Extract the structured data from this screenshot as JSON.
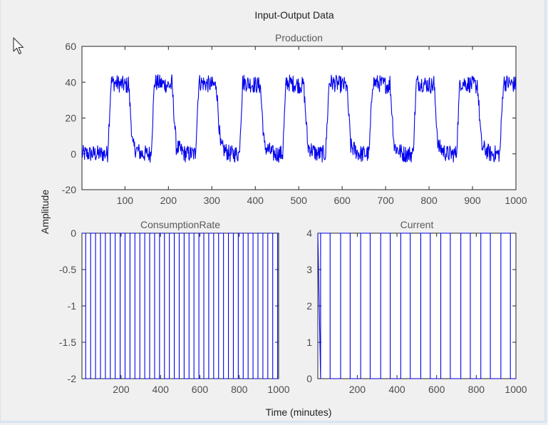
{
  "figure": {
    "title": "Input-Output Data",
    "ylabel": "Amplitude",
    "xlabel": "Time (minutes)",
    "line_color": "#0000ee",
    "axes_color": "#262626"
  },
  "chart_data": [
    {
      "type": "line",
      "title": "Production",
      "xlim": [
        1,
        1000
      ],
      "ylim": [
        -20,
        60
      ],
      "x_ticks": [
        100,
        200,
        300,
        400,
        500,
        600,
        700,
        800,
        900,
        1000
      ],
      "y_ticks": [
        -20,
        0,
        20,
        40,
        60
      ],
      "x_tick_labels": [
        "100",
        "200",
        "300",
        "400",
        "500",
        "600",
        "700",
        "800",
        "900",
        "1000"
      ],
      "y_tick_labels": [
        "-20",
        "0",
        "20",
        "40",
        "60"
      ],
      "pulse_period": 101,
      "pulse_rises": [
        60,
        160,
        262,
        363,
        463,
        562,
        662,
        763,
        863,
        963
      ],
      "pulse_width": 48,
      "high_level": 40,
      "low_level": 0,
      "noise_amplitude": 3
    },
    {
      "type": "line",
      "title": "ConsumptionRate",
      "xlim": [
        1,
        1000
      ],
      "ylim": [
        -2,
        0
      ],
      "x_ticks": [
        200,
        400,
        600,
        800,
        1000
      ],
      "y_ticks": [
        -2,
        -1.5,
        -1,
        -0.5,
        0
      ],
      "x_tick_labels": [
        "200",
        "400",
        "600",
        "800",
        "1000"
      ],
      "y_tick_labels": [
        "-2",
        "-1.5",
        "-1",
        "-0.5",
        "0"
      ],
      "pulse_period": 50,
      "pulse_start": 20,
      "pulse_width": 25,
      "high_level": 0,
      "low_level": -2
    },
    {
      "type": "line",
      "title": "Current",
      "xlim": [
        1,
        1000
      ],
      "ylim": [
        0,
        4
      ],
      "x_ticks": [
        200,
        400,
        600,
        800,
        1000
      ],
      "y_ticks": [
        0,
        1,
        2,
        3,
        4
      ],
      "x_tick_labels": [
        "200",
        "400",
        "600",
        "800",
        "1000"
      ],
      "y_tick_labels": [
        "0",
        "1",
        "2",
        "3",
        "4"
      ],
      "pulse_period": 101,
      "pulse_start": 15,
      "pulse_width": 48,
      "high_level": 4,
      "low_level": 0
    }
  ]
}
